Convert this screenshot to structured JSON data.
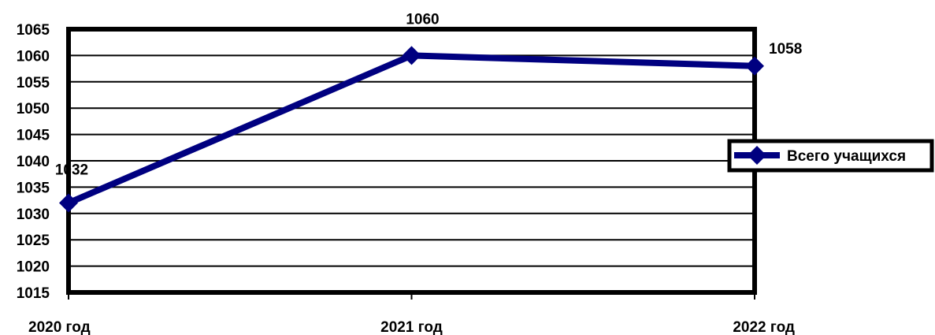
{
  "chart_data": {
    "type": "line",
    "title": "",
    "xlabel": "",
    "ylabel": "",
    "categories": [
      "2020 год",
      "2021 год",
      "2022 год"
    ],
    "ylim": [
      1015,
      1065
    ],
    "ytick_step": 5,
    "grid": true,
    "legend_position": "right",
    "series": [
      {
        "name": "Всего учащихся",
        "values": [
          1032,
          1060,
          1058
        ],
        "data_labels": [
          "1032",
          "1060",
          "1058"
        ],
        "color": "#000080",
        "marker": "diamond"
      }
    ]
  }
}
